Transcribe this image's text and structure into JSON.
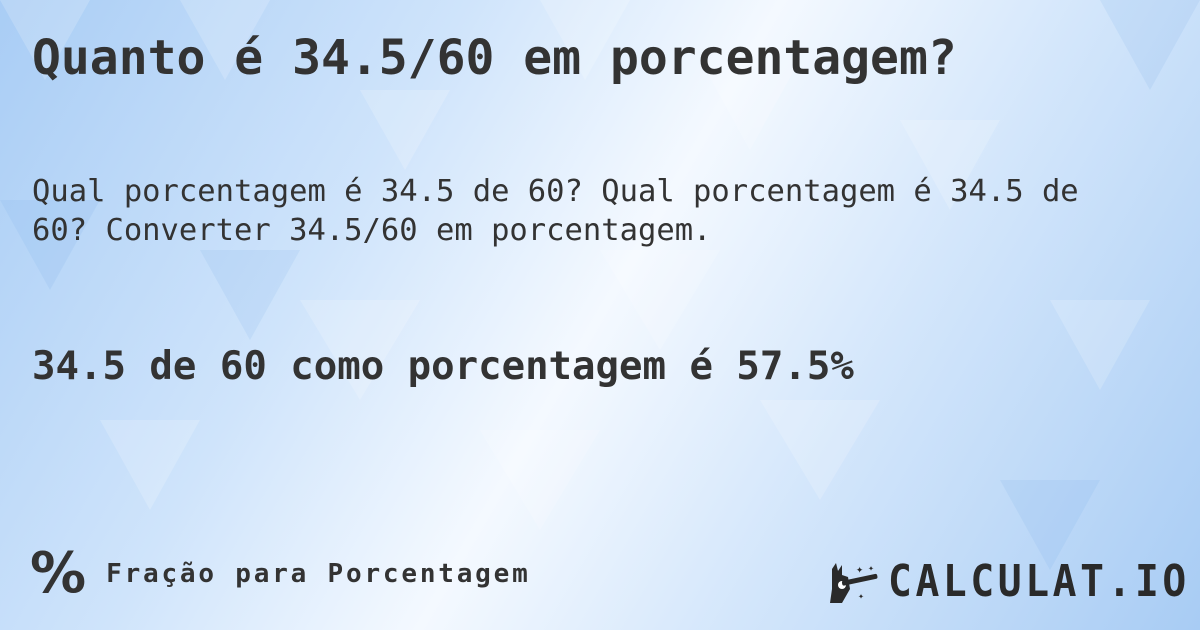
{
  "title": "Quanto é 34.5/60 em porcentagem?",
  "description": "Qual porcentagem é 34.5 de 60? Qual porcentagem é 34.5 de 60? Converter 34.5/60 em porcentagem.",
  "result": "34.5 de 60 como porcentagem é 57.5%",
  "footer": {
    "icon": "percent-icon",
    "label": "Fração para Porcentagem"
  },
  "logo": {
    "text": "CALCULAT.IO",
    "icon": "magic-hand-wand-icon"
  },
  "colors": {
    "text": "#333333",
    "background": "#cfe4fb"
  }
}
